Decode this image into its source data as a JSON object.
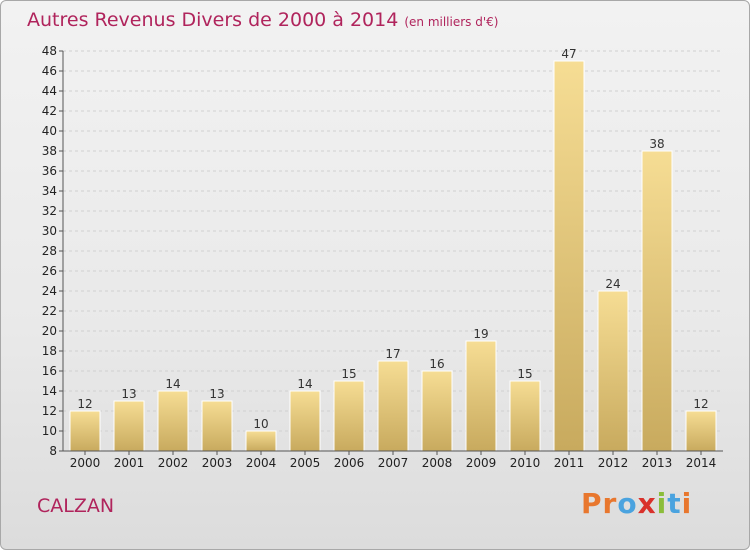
{
  "chart_data": {
    "type": "bar",
    "title": "Autres Revenus Divers de 2000 à 2014",
    "subtitle": "(en milliers d'€)",
    "categories": [
      "2000",
      "2001",
      "2002",
      "2003",
      "2004",
      "2005",
      "2006",
      "2007",
      "2008",
      "2009",
      "2010",
      "2011",
      "2012",
      "2013",
      "2014"
    ],
    "values": [
      12,
      13,
      14,
      13,
      10,
      14,
      15,
      17,
      16,
      19,
      15,
      47,
      24,
      38,
      12
    ],
    "ylim": [
      8,
      48
    ],
    "yticks": [
      8,
      10,
      12,
      14,
      16,
      18,
      20,
      22,
      24,
      26,
      28,
      30,
      32,
      34,
      36,
      38,
      40,
      42,
      44,
      46,
      48
    ],
    "grid": true,
    "bar_color": "#e6c777"
  },
  "footer": {
    "place": "CALZAN",
    "logo": "Proxiti",
    "logo_colors": [
      "#e8772e",
      "#e8772e",
      "#4aa3df",
      "#d9312b",
      "#8bbd3a",
      "#4aa3df",
      "#e8772e"
    ]
  }
}
